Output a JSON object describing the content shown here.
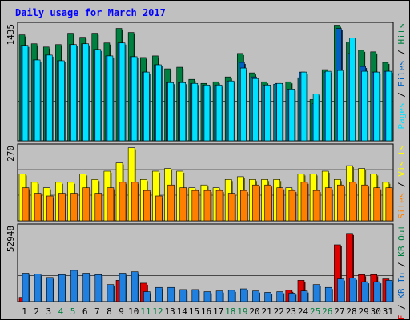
{
  "chart_data": {
    "type": "bar",
    "title": "Daily usage for March 2017",
    "categories": [
      "1",
      "2",
      "3",
      "4",
      "5",
      "6",
      "7",
      "8",
      "9",
      "10",
      "11",
      "12",
      "13",
      "14",
      "15",
      "16",
      "17",
      "18",
      "19",
      "20",
      "21",
      "22",
      "23",
      "24",
      "25",
      "26",
      "27",
      "28",
      "29",
      "30",
      "31"
    ],
    "weekend_days": [
      "4",
      "5",
      "11",
      "12",
      "18",
      "19",
      "25",
      "26"
    ],
    "panels": [
      {
        "id": "hits-files-pages",
        "ymax_label": "1435",
        "ymax": 1435,
        "ylim": [
          0,
          1435
        ],
        "legend": [
          {
            "text": "Pages",
            "color": "#00e0ff"
          },
          {
            "text": "Files",
            "color": "#0060c0"
          },
          {
            "text": "Hits",
            "color": "#008040"
          }
        ],
        "series": [
          {
            "name": "Hits",
            "color": "#008040",
            "values": [
              1310,
              1200,
              1160,
              1190,
              1330,
              1280,
              1330,
              1210,
              1390,
              1340,
              1030,
              1050,
              890,
              910,
              760,
              710,
              730,
              790,
              1080,
              840,
              730,
              700,
              730,
              780,
              510,
              880,
              1430,
              1220,
              1120,
              1100,
              970
            ]
          },
          {
            "name": "Files",
            "color": "#0060c0",
            "values": [
              1180,
              1000,
              1060,
              990,
              1190,
              1200,
              1130,
              1050,
              1210,
              1040,
              850,
              940,
              720,
              720,
              710,
              690,
              690,
              740,
              970,
              790,
              690,
              710,
              640,
              850,
              460,
              850,
              1390,
              1080,
              920,
              850,
              860
            ]
          },
          {
            "name": "Pages",
            "color": "#00e0ff",
            "values": [
              1180,
              1000,
              1060,
              990,
              1190,
              1200,
              1130,
              1050,
              1210,
              1040,
              850,
              940,
              720,
              720,
              710,
              690,
              690,
              740,
              900,
              770,
              690,
              710,
              640,
              850,
              580,
              860,
              870,
              1270,
              860,
              850,
              860
            ]
          }
        ]
      },
      {
        "id": "visits-sites",
        "ymax_label": "270",
        "ymax": 270,
        "ylim": [
          0,
          270
        ],
        "legend": [
          {
            "text": "Sites",
            "color": "#ff8000"
          },
          {
            "text": "Visits",
            "color": "#ffff00"
          }
        ],
        "series": [
          {
            "name": "Visits",
            "color": "#ffff00",
            "values": [
              170,
              140,
              120,
              140,
              140,
              170,
              150,
              180,
              210,
              265,
              150,
              180,
              190,
              180,
              120,
              130,
              120,
              150,
              160,
              150,
              150,
              150,
              120,
              170,
              170,
              180,
              150,
              200,
              190,
              170,
              140
            ]
          },
          {
            "name": "Sites",
            "color": "#ff8000",
            "values": [
              120,
              100,
              90,
              100,
              100,
              120,
              100,
              120,
              140,
              140,
              110,
              90,
              130,
              120,
              110,
              110,
              110,
              100,
              110,
              130,
              130,
              120,
              110,
              140,
              110,
              120,
              130,
              140,
              130,
              120,
              120
            ]
          }
        ]
      },
      {
        "id": "kbytes",
        "ymax_label": "52948",
        "ymax": 52948,
        "ylim": [
          0,
          52948
        ],
        "legend": [
          {
            "text": "KB F",
            "color": "#e00000"
          },
          {
            "text": "KB In",
            "color": "#0060c0"
          },
          {
            "text": "KB Out",
            "color": "#008040"
          }
        ],
        "series": [
          {
            "name": "KB F",
            "color": "#e00000",
            "values": [
              3000,
              0,
              0,
              0,
              0,
              0,
              0,
              0,
              15000,
              0,
              13000,
              0,
              0,
              0,
              0,
              0,
              0,
              0,
              0,
              0,
              0,
              0,
              8000,
              15000,
              0,
              0,
              40000,
              48000,
              19000,
              19000,
              16000
            ]
          },
          {
            "name": "KB In",
            "color": "#2080e0",
            "values": [
              20000,
              19500,
              17000,
              19000,
              22000,
              20000,
              19000,
              12000,
              20000,
              21000,
              7000,
              10000,
              10000,
              8500,
              8500,
              7000,
              7500,
              8000,
              9000,
              7500,
              6500,
              7000,
              6000,
              7500,
              12000,
              10000,
              16000,
              16500,
              14000,
              14000,
              15000
            ]
          }
        ]
      }
    ]
  }
}
